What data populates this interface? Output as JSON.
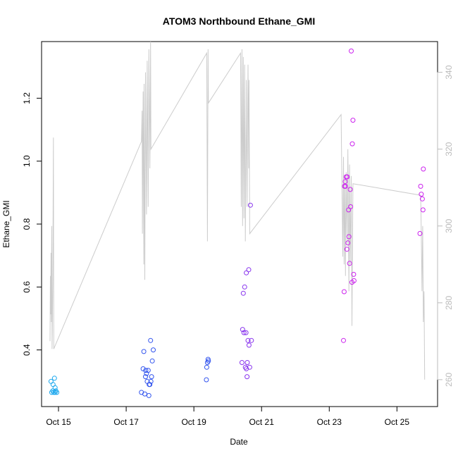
{
  "chart_data": {
    "type": "scatter",
    "title": "ATOM3 Northbound Ethane_GMI",
    "xlabel": "Date",
    "ylabel": "Ethane_GMI",
    "x_ticks": [
      "Oct 15",
      "Oct 17",
      "Oct 19",
      "Oct 21",
      "Oct 23",
      "Oct 25"
    ],
    "x_tick_values": [
      15,
      17,
      19,
      21,
      23,
      25
    ],
    "xlim": [
      14.5,
      26.2
    ],
    "ylim": [
      0.22,
      1.38
    ],
    "y_ticks": [
      0.4,
      0.6,
      0.8,
      1.0,
      1.2
    ],
    "y_tick_labels": [
      "0.4",
      "0.6",
      "0.8",
      "1.0",
      "1.2"
    ],
    "y2lim": [
      253,
      348
    ],
    "y2_ticks": [
      260,
      280,
      300,
      320,
      340
    ],
    "y2_tick_labels": [
      "260",
      "280",
      "300",
      "320",
      "340"
    ],
    "colors": {
      "points_low": "#1aa7ee",
      "points_mid": "#3355ee",
      "points_high": "#cc22ee",
      "secondary_line": "#cccccc",
      "frame": "#000000"
    },
    "points": [
      [
        14.78,
        0.3
      ],
      [
        14.8,
        0.265
      ],
      [
        14.83,
        0.27
      ],
      [
        14.86,
        0.265
      ],
      [
        14.88,
        0.31
      ],
      [
        14.9,
        0.28
      ],
      [
        14.92,
        0.27
      ],
      [
        14.95,
        0.265
      ],
      [
        14.84,
        0.29
      ],
      [
        14.9,
        0.265
      ],
      [
        17.45,
        0.265
      ],
      [
        17.5,
        0.34
      ],
      [
        17.52,
        0.395
      ],
      [
        17.55,
        0.26
      ],
      [
        17.57,
        0.315
      ],
      [
        17.58,
        0.335
      ],
      [
        17.6,
        0.325
      ],
      [
        17.62,
        0.3
      ],
      [
        17.65,
        0.335
      ],
      [
        17.67,
        0.255
      ],
      [
        17.7,
        0.29
      ],
      [
        17.72,
        0.43
      ],
      [
        17.73,
        0.3
      ],
      [
        17.75,
        0.315
      ],
      [
        17.77,
        0.365
      ],
      [
        17.8,
        0.4
      ],
      [
        17.68,
        0.29
      ],
      [
        19.37,
        0.305
      ],
      [
        19.38,
        0.345
      ],
      [
        19.4,
        0.36
      ],
      [
        19.42,
        0.37
      ],
      [
        19.43,
        0.365
      ],
      [
        20.42,
        0.36
      ],
      [
        20.44,
        0.465
      ],
      [
        20.46,
        0.58
      ],
      [
        20.48,
        0.455
      ],
      [
        20.5,
        0.6
      ],
      [
        20.52,
        0.345
      ],
      [
        20.54,
        0.455
      ],
      [
        20.55,
        0.645
      ],
      [
        20.57,
        0.315
      ],
      [
        20.58,
        0.36
      ],
      [
        20.6,
        0.43
      ],
      [
        20.62,
        0.655
      ],
      [
        20.63,
        0.415
      ],
      [
        20.65,
        0.345
      ],
      [
        20.67,
        0.86
      ],
      [
        20.7,
        0.43
      ],
      [
        20.55,
        0.34
      ],
      [
        23.42,
        0.43
      ],
      [
        23.44,
        0.585
      ],
      [
        23.45,
        0.92
      ],
      [
        23.47,
        0.935
      ],
      [
        23.48,
        0.92
      ],
      [
        23.5,
        0.95
      ],
      [
        23.52,
        0.72
      ],
      [
        23.53,
        0.95
      ],
      [
        23.55,
        0.74
      ],
      [
        23.57,
        0.845
      ],
      [
        23.58,
        0.76
      ],
      [
        23.6,
        0.675
      ],
      [
        23.62,
        0.91
      ],
      [
        23.63,
        0.855
      ],
      [
        23.65,
        1.35
      ],
      [
        23.67,
        0.615
      ],
      [
        23.68,
        1.055
      ],
      [
        23.7,
        1.13
      ],
      [
        23.72,
        0.64
      ],
      [
        23.73,
        0.62
      ],
      [
        25.68,
        0.77
      ],
      [
        25.7,
        0.92
      ],
      [
        25.72,
        0.895
      ],
      [
        25.75,
        0.88
      ],
      [
        25.77,
        0.845
      ],
      [
        25.78,
        0.975
      ]
    ],
    "line2_y": [
      [
        14.75,
        270
      ],
      [
        14.76,
        287
      ],
      [
        14.77,
        277
      ],
      [
        14.78,
        293
      ],
      [
        14.79,
        275
      ],
      [
        14.8,
        300
      ],
      [
        14.81,
        268
      ],
      [
        14.83,
        285
      ],
      [
        14.85,
        323
      ],
      [
        14.86,
        268
      ],
      [
        17.45,
        322
      ],
      [
        17.47,
        330
      ],
      [
        17.48,
        298
      ],
      [
        17.5,
        335
      ],
      [
        17.52,
        290
      ],
      [
        17.53,
        337
      ],
      [
        17.55,
        286
      ],
      [
        17.57,
        340
      ],
      [
        17.6,
        303
      ],
      [
        17.62,
        343
      ],
      [
        17.65,
        305
      ],
      [
        17.67,
        346
      ],
      [
        17.7,
        315
      ],
      [
        17.72,
        348
      ],
      [
        17.73,
        320
      ],
      [
        19.38,
        345
      ],
      [
        19.4,
        296
      ],
      [
        19.42,
        346
      ],
      [
        19.43,
        332
      ],
      [
        20.38,
        345
      ],
      [
        20.4,
        305
      ],
      [
        20.42,
        346
      ],
      [
        20.44,
        300
      ],
      [
        20.46,
        344
      ],
      [
        20.48,
        302
      ],
      [
        20.5,
        342
      ],
      [
        20.52,
        296
      ],
      [
        20.55,
        338
      ],
      [
        20.57,
        305
      ],
      [
        20.6,
        342
      ],
      [
        20.62,
        315
      ],
      [
        20.63,
        338
      ],
      [
        20.65,
        298
      ],
      [
        23.35,
        329
      ],
      [
        23.4,
        292
      ],
      [
        23.42,
        318
      ],
      [
        23.44,
        290
      ],
      [
        23.46,
        312
      ],
      [
        23.48,
        287
      ],
      [
        23.5,
        314
      ],
      [
        23.53,
        295
      ],
      [
        23.55,
        320
      ],
      [
        23.58,
        283
      ],
      [
        23.6,
        316
      ],
      [
        23.62,
        290
      ],
      [
        23.65,
        313
      ],
      [
        23.67,
        274
      ],
      [
        23.7,
        311
      ],
      [
        25.7,
        308
      ],
      [
        25.72,
        298
      ],
      [
        25.74,
        283
      ],
      [
        25.76,
        300
      ],
      [
        25.78,
        275
      ],
      [
        25.8,
        283
      ],
      [
        25.82,
        260
      ]
    ]
  }
}
